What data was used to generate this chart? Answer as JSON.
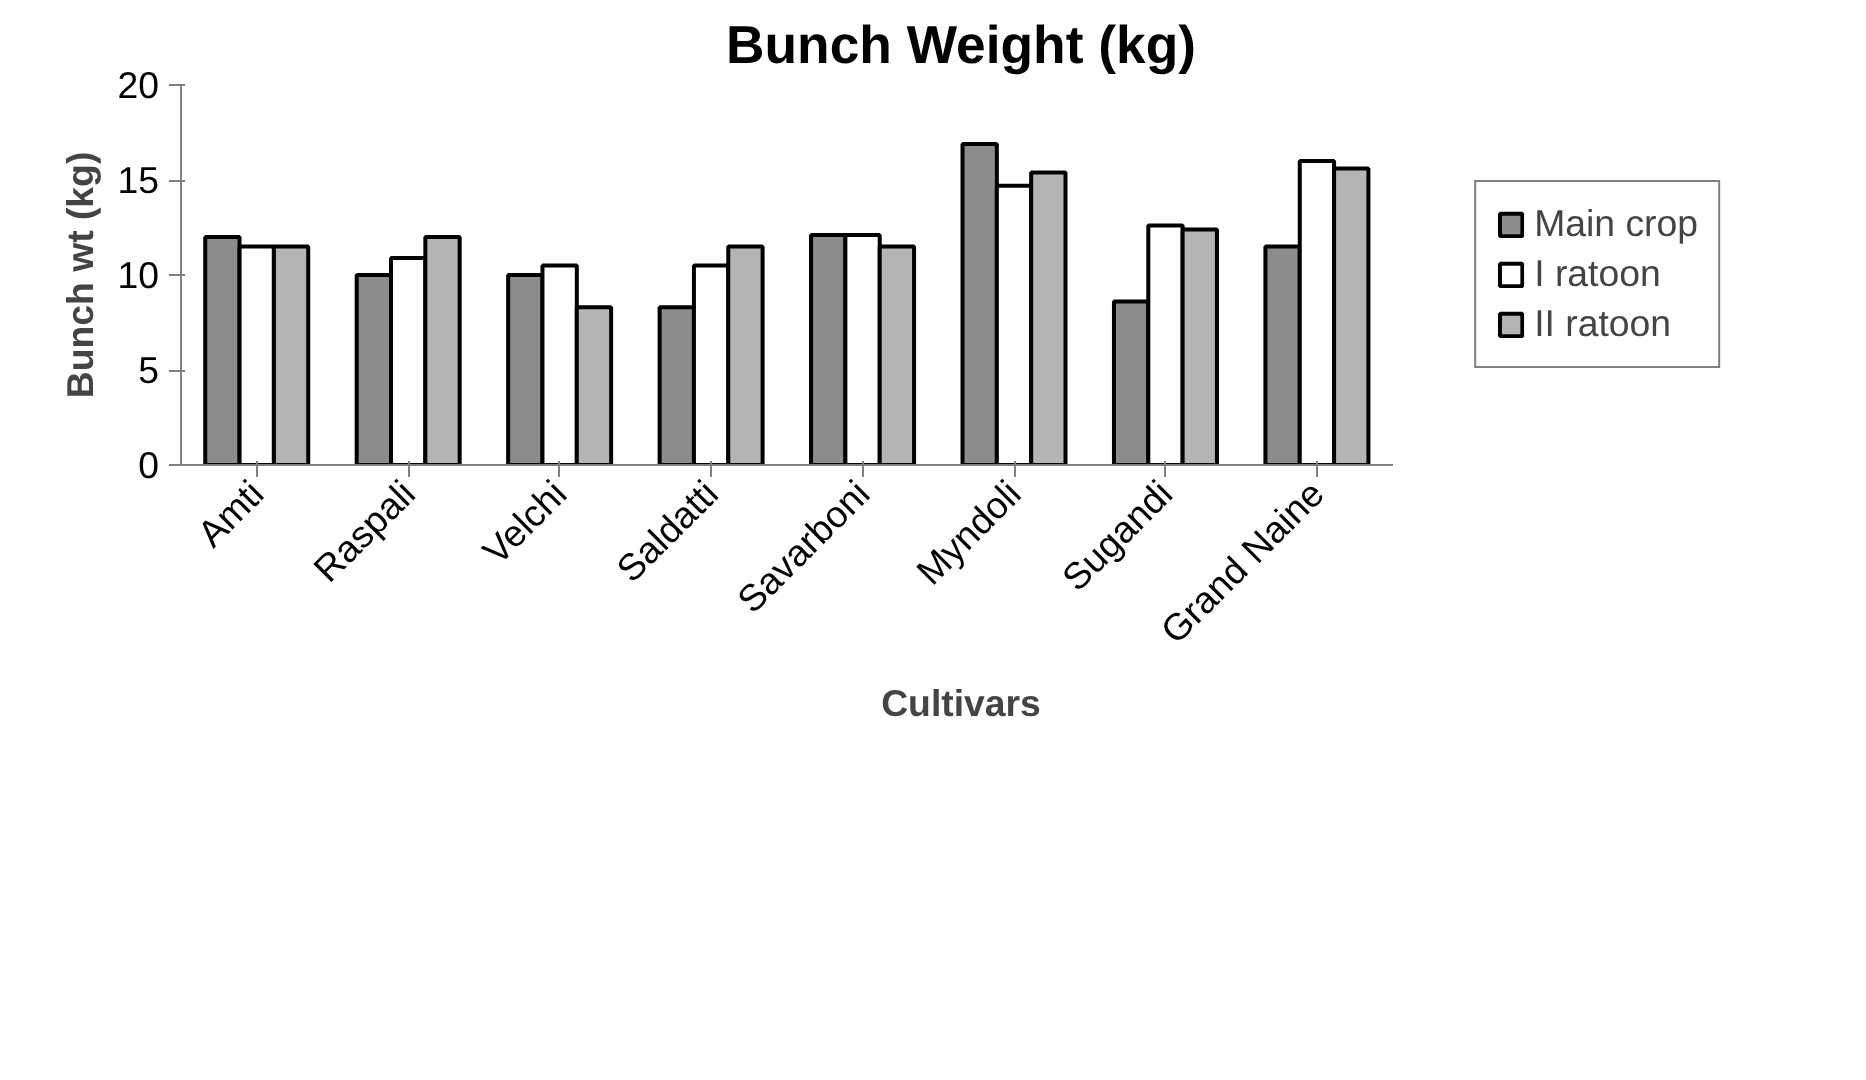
{
  "chart_data": {
    "type": "bar",
    "title": "Bunch Weight (kg)",
    "xlabel": "Cultivars",
    "ylabel": "Bunch wt (kg)",
    "categories": [
      "Amti",
      "Raspali",
      "Velchi",
      "Saldatti",
      "Savarboni",
      "Myndoli",
      "Sugandi",
      "Grand Naine"
    ],
    "series": [
      {
        "name": "Main crop",
        "color": "#8c8c8c",
        "values": [
          12,
          10,
          10,
          8.3,
          12.1,
          16.9,
          8.6,
          11.5
        ]
      },
      {
        "name": "I ratoon",
        "color": "#ffffff",
        "values": [
          11.5,
          10.9,
          10.5,
          10.5,
          12.1,
          14.7,
          12.6,
          16
        ]
      },
      {
        "name": "II ratoon",
        "color": "#b4b4b4",
        "values": [
          11.5,
          12,
          8.3,
          11.5,
          11.5,
          15.4,
          12.4,
          15.6
        ]
      }
    ],
    "ylim": [
      0,
      20
    ],
    "yticks": [
      0,
      5,
      10,
      15,
      20
    ],
    "grid": false,
    "legend": "right"
  }
}
